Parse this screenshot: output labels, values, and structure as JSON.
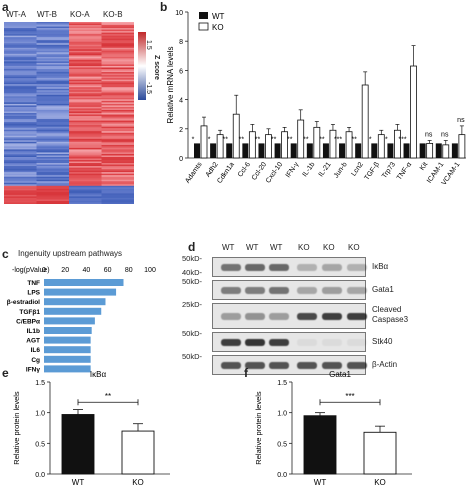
{
  "panels": {
    "a": {
      "label": "a",
      "columns": [
        "WT-A",
        "WT-B",
        "KO-A",
        "KO-B"
      ],
      "colorbar": {
        "label": "Z score",
        "max": "1.5",
        "min": "-1.5"
      }
    },
    "b": {
      "label": "b",
      "legend": [
        "WT",
        "KO"
      ]
    },
    "c": {
      "label": "c",
      "title": "Ingenuity upstream pathways",
      "axis_label": "-log(pValue)",
      "ticks": [
        "0",
        "20",
        "40",
        "60",
        "80",
        "100"
      ]
    },
    "d": {
      "label": "d",
      "lane_labels": [
        "WT",
        "WT",
        "WT",
        "KO",
        "KO",
        "KO"
      ],
      "blots": [
        {
          "name": "IκBα",
          "markers": [
            "50kD-",
            "40kD-"
          ]
        },
        {
          "name": "Gata1",
          "markers": [
            "50kD-"
          ]
        },
        {
          "name": "Cleaved\nCaspase3",
          "markers": [
            "25kD-"
          ]
        },
        {
          "name": "Stk40",
          "markers": [
            "50kD-"
          ]
        },
        {
          "name": "β-Actin",
          "markers": [
            "50kD-"
          ]
        }
      ]
    },
    "e": {
      "label": "e"
    },
    "f": {
      "label": "f"
    }
  },
  "chart_data": [
    {
      "id": "b",
      "type": "bar",
      "ylabel": "Relative mRNA levels",
      "ylim": [
        0,
        10
      ],
      "yticks": [
        0,
        2,
        4,
        6,
        8,
        10
      ],
      "categories": [
        "Adamts",
        "Adh2",
        "Cdkn1a",
        "Ccl-6",
        "Ccl-20",
        "Cxcl-10",
        "IFN-γ",
        "IL-1b",
        "IL-21",
        "Jun-b",
        "Lcn2",
        "TGF-β",
        "Trp73",
        "TNF-α",
        "Kit",
        "ICAM-1",
        "VCAM-1"
      ],
      "series": [
        {
          "name": "WT",
          "values": [
            1,
            1,
            1,
            1,
            1,
            1,
            1,
            1,
            1,
            1,
            1,
            1,
            1,
            1,
            1,
            1,
            1
          ],
          "errors": [
            0,
            0,
            0,
            0,
            0,
            0,
            0,
            0,
            0,
            0,
            0,
            0,
            0,
            0,
            0,
            0,
            0
          ]
        },
        {
          "name": "KO",
          "values": [
            2.2,
            1.6,
            3.0,
            1.8,
            1.6,
            1.8,
            2.6,
            2.1,
            1.9,
            1.8,
            5.0,
            1.6,
            1.9,
            6.3,
            1.0,
            0.9,
            1.6
          ],
          "errors": [
            0.6,
            0.3,
            1.3,
            0.5,
            0.4,
            0.3,
            0.7,
            0.4,
            0.4,
            0.3,
            0.9,
            0.3,
            0.4,
            1.4,
            0.2,
            0.3,
            0.6
          ]
        }
      ],
      "significance": [
        "*",
        "*",
        "**",
        "**",
        "**",
        "**",
        "**",
        "**",
        "**",
        "***",
        "**",
        "*",
        "*",
        "***",
        "ns",
        "ns",
        "ns"
      ]
    },
    {
      "id": "c",
      "type": "bar",
      "orientation": "horizontal",
      "categories": [
        "TNF",
        "LPS",
        "β-estradiol",
        "TGFβ1",
        "C/EBPα",
        "IL1b",
        "AGT",
        "IL6",
        "Cg",
        "IFNγ"
      ],
      "values": [
        75,
        68,
        58,
        54,
        48,
        45,
        44,
        44,
        44,
        44
      ],
      "xlim": [
        0,
        100
      ]
    },
    {
      "id": "e",
      "type": "bar",
      "title": "IκBα",
      "ylabel": "Relative protein levels",
      "ylim": [
        0,
        1.5
      ],
      "yticks": [
        "0.0",
        "0.5",
        "1.0",
        "1.5"
      ],
      "categories": [
        "WT",
        "KO"
      ],
      "values": [
        0.97,
        0.7
      ],
      "errors": [
        0.08,
        0.12
      ],
      "significance": "**"
    },
    {
      "id": "f",
      "type": "bar",
      "title": "Gata1",
      "ylabel": "Relative protein levels",
      "ylim": [
        0,
        1.5
      ],
      "yticks": [
        "0.0",
        "0.5",
        "1.0",
        "1.5"
      ],
      "categories": [
        "WT",
        "KO"
      ],
      "values": [
        0.95,
        0.68
      ],
      "errors": [
        0.05,
        0.1
      ],
      "significance": "***"
    }
  ]
}
